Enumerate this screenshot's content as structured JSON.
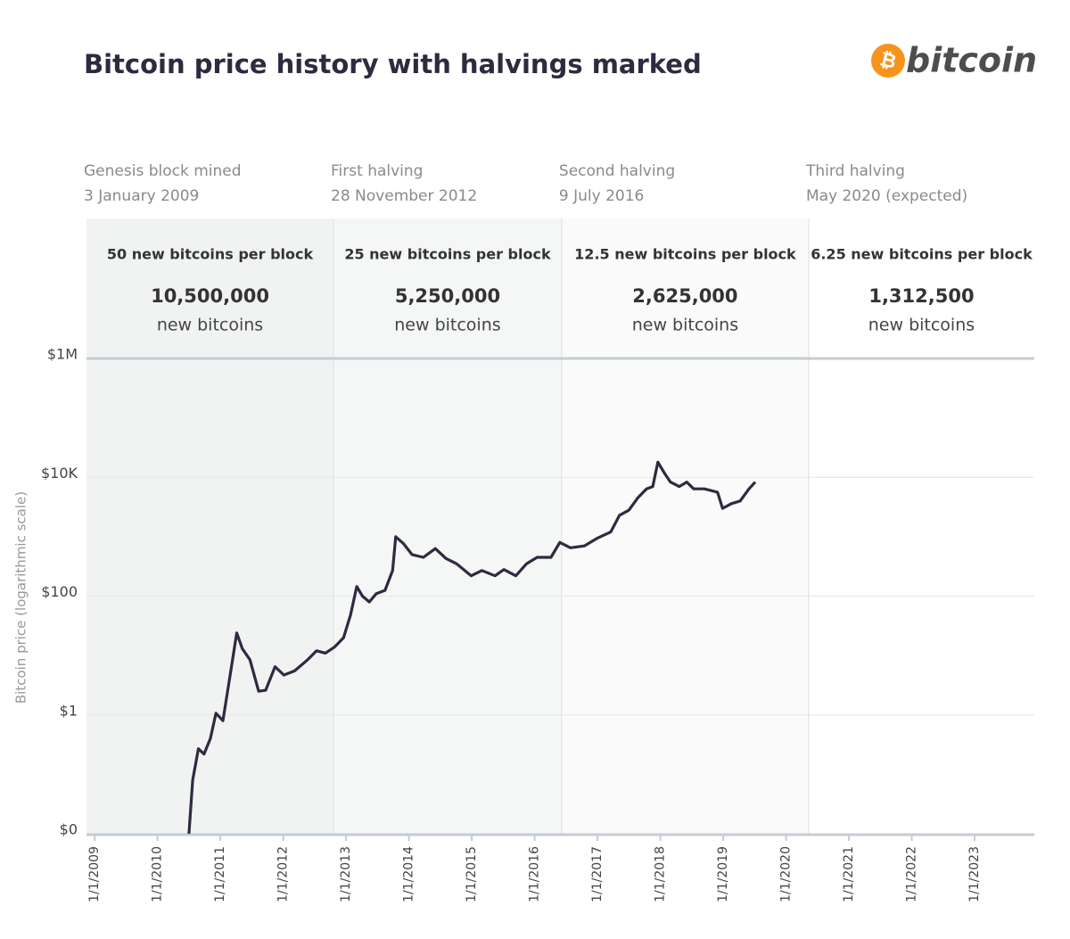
{
  "chart_data": {
    "type": "line",
    "title": "Bitcoin price history with halvings marked",
    "logo": {
      "symbol": "₿",
      "text": "bitcoin"
    },
    "ylabel": "Bitcoin price (logarithmic scale)",
    "log_y": true,
    "grid": true,
    "ylim": [
      0.01,
      1000000
    ],
    "yticks": [
      {
        "value": 0.01,
        "label": "$0"
      },
      {
        "value": 1,
        "label": "$1"
      },
      {
        "value": 100,
        "label": "$100"
      },
      {
        "value": 10000,
        "label": "$10K"
      },
      {
        "value": 1000000,
        "label": "$1M"
      }
    ],
    "xlim": [
      2008.87,
      2023.95
    ],
    "xticks": [
      {
        "value": 2009,
        "label": "1/1/2009"
      },
      {
        "value": 2010,
        "label": "1/1/2010"
      },
      {
        "value": 2011,
        "label": "1/1/2011"
      },
      {
        "value": 2012,
        "label": "1/1/2012"
      },
      {
        "value": 2013,
        "label": "1/1/2013"
      },
      {
        "value": 2014,
        "label": "1/1/2014"
      },
      {
        "value": 2015,
        "label": "1/1/2015"
      },
      {
        "value": 2016,
        "label": "1/1/2016"
      },
      {
        "value": 2017,
        "label": "1/1/2017"
      },
      {
        "value": 2018,
        "label": "1/1/2018"
      },
      {
        "value": 2019,
        "label": "1/1/2019"
      },
      {
        "value": 2020,
        "label": "1/1/2020"
      },
      {
        "value": 2021,
        "label": "1/1/2021"
      },
      {
        "value": 2022,
        "label": "1/1/2022"
      },
      {
        "value": 2023,
        "label": "1/1/2023"
      }
    ],
    "eras": [
      {
        "name": "Genesis block mined",
        "date": "3 January 2009",
        "start": 2008.87,
        "reward": "50 new bitcoins per block",
        "supply": "10,500,000",
        "unit": "new bitcoins",
        "color": "#f1f3f3"
      },
      {
        "name": "First halving",
        "date": "28 November 2012",
        "start": 2012.8,
        "reward": "25 new bitcoins per block",
        "supply": "5,250,000",
        "unit": "new bitcoins",
        "color": "#f5f6f6"
      },
      {
        "name": "Second halving",
        "date": "9 July 2016",
        "start": 2016.43,
        "reward": "12.5 new bitcoins per block",
        "supply": "2,625,000",
        "unit": "new bitcoins",
        "color": "#fafafa"
      },
      {
        "name": "Third halving",
        "date": "May 2020 (expected)",
        "start": 2020.36,
        "reward": "6.25 new bitcoins per block",
        "supply": "1,312,500",
        "unit": "new bitcoins",
        "color": "#ffffff"
      }
    ],
    "series": [
      {
        "color": "#2e2a3f",
        "x": [
          2010.5,
          2010.56,
          2010.65,
          2010.74,
          2010.84,
          2010.93,
          2011.04,
          2011.16,
          2011.26,
          2011.35,
          2011.47,
          2011.61,
          2011.72,
          2011.87,
          2012.01,
          2012.18,
          2012.39,
          2012.53,
          2012.67,
          2012.82,
          2012.96,
          2013.07,
          2013.17,
          2013.26,
          2013.37,
          2013.48,
          2013.62,
          2013.74,
          2013.79,
          2013.91,
          2014.05,
          2014.23,
          2014.42,
          2014.59,
          2014.76,
          2014.99,
          2015.16,
          2015.37,
          2015.51,
          2015.7,
          2015.87,
          2016.04,
          2016.26,
          2016.4,
          2016.57,
          2016.79,
          2017.0,
          2017.21,
          2017.35,
          2017.5,
          2017.64,
          2017.78,
          2017.88,
          2017.96,
          2018.06,
          2018.16,
          2018.3,
          2018.42,
          2018.53,
          2018.7,
          2018.91,
          2018.99,
          2019.13,
          2019.27,
          2019.41,
          2019.51
        ],
        "values": [
          0.01,
          0.08,
          0.27,
          0.22,
          0.4,
          1.07,
          0.8,
          5,
          24,
          13,
          8.5,
          2.5,
          2.6,
          6.5,
          4.7,
          5.5,
          8.5,
          12,
          11,
          14,
          20,
          48,
          145,
          100,
          80,
          110,
          125,
          270,
          1000,
          770,
          500,
          450,
          630,
          430,
          350,
          220,
          270,
          220,
          280,
          220,
          350,
          450,
          450,
          800,
          650,
          700,
          950,
          1200,
          2300,
          2800,
          4500,
          6400,
          7000,
          18000,
          12000,
          8300,
          7000,
          8300,
          6400,
          6400,
          5600,
          3000,
          3600,
          4000,
          6400,
          8300
        ]
      }
    ]
  }
}
